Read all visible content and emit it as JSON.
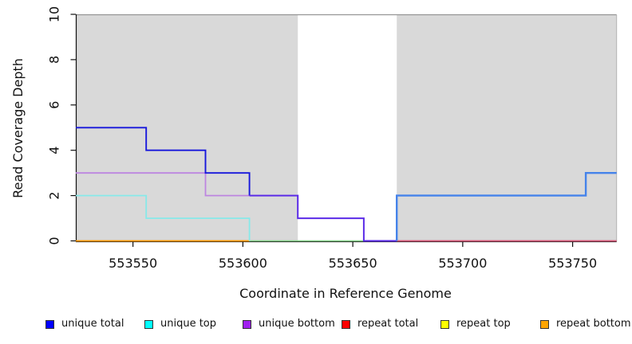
{
  "axes": {
    "x_label": "Coordinate in Reference Genome",
    "y_label": "Read Coverage Depth"
  },
  "chart_data": {
    "type": "line",
    "subtype": "step",
    "title": "",
    "xlabel": "Coordinate in Reference Genome",
    "ylabel": "Read Coverage Depth",
    "xlim": [
      553524,
      553770
    ],
    "ylim": [
      0,
      10
    ],
    "x_ticks": [
      "553550",
      "553600",
      "553650",
      "553700",
      "553750"
    ],
    "y_ticks": [
      "0",
      "2",
      "4",
      "6",
      "8",
      "10"
    ],
    "grid": "off",
    "legend_position": "bottom",
    "shaded_color": "#D9D9D9",
    "shaded_regions": [
      {
        "from": 553524,
        "to": 553625
      },
      {
        "from": 553670,
        "to": 553770
      }
    ],
    "series": [
      {
        "name": "unique total",
        "color": "#0000FF",
        "steps": [
          [
            553524,
            5
          ],
          [
            553556,
            4
          ],
          [
            553583,
            3
          ],
          [
            553603,
            2
          ],
          [
            553625,
            1
          ],
          [
            553655,
            0
          ],
          [
            553670,
            2
          ],
          [
            553756,
            3
          ]
        ],
        "end": 553770
      },
      {
        "name": "unique top",
        "color": "#00FFFF",
        "steps": [
          [
            553524,
            2
          ],
          [
            553556,
            1
          ],
          [
            553603,
            0
          ]
        ],
        "end": 553770
      },
      {
        "name": "unique bottom",
        "color": "#A020F0",
        "steps": [
          [
            553524,
            3
          ],
          [
            553583,
            2
          ],
          [
            553625,
            1
          ],
          [
            553655,
            0
          ]
        ],
        "end": 553770
      },
      {
        "name": "repeat total",
        "color": "#FF0000",
        "steps": [
          [
            553524,
            0
          ]
        ],
        "end": 553770
      },
      {
        "name": "repeat top",
        "color": "#FFFF00",
        "steps": [
          [
            553524,
            0
          ]
        ],
        "end": 553770
      },
      {
        "name": "repeat bottom",
        "color": "#FFA500",
        "steps": [
          [
            553524,
            0
          ]
        ],
        "end": 553770
      }
    ],
    "rendered_layers": [
      {
        "name": "repeat-bottom-zero-line",
        "color": "#FF9900",
        "width": 1.8,
        "points": [
          [
            553524,
            0
          ],
          [
            553603,
            0
          ]
        ]
      },
      {
        "name": "unique-top-repeat-overlap-zero-line",
        "color": "#85D489",
        "width": 1.6,
        "points": [
          [
            553603,
            0
          ],
          [
            553655,
            0
          ]
        ]
      },
      {
        "name": "repeat-total-zero-line",
        "color": "#D95677",
        "width": 1.7,
        "points": [
          [
            553670,
            0
          ],
          [
            553770,
            0
          ]
        ]
      },
      {
        "name": "unique-top-line",
        "color": "#87E9E9",
        "width": 1.8,
        "points": [
          [
            553524,
            2
          ],
          [
            553556,
            2
          ],
          [
            553556,
            1
          ],
          [
            553603,
            1
          ],
          [
            553603,
            0
          ]
        ]
      },
      {
        "name": "unique-bottom-line",
        "color": "#BD85E0",
        "width": 1.8,
        "points": [
          [
            553524,
            3
          ],
          [
            553583,
            3
          ],
          [
            553583,
            2
          ],
          [
            553603,
            2
          ]
        ]
      },
      {
        "name": "unique-total-line-left",
        "color": "#1717DC",
        "width": 1.9,
        "points": [
          [
            553524,
            5
          ],
          [
            553556,
            5
          ],
          [
            553556,
            4
          ],
          [
            553583,
            4
          ],
          [
            553583,
            3
          ],
          [
            553603,
            3
          ],
          [
            553603,
            2
          ]
        ]
      },
      {
        "name": "unique-total-bottom-overlap-line",
        "color": "#5B2BE8",
        "width": 2.0,
        "points": [
          [
            553603,
            2
          ],
          [
            553625,
            2
          ],
          [
            553625,
            1
          ],
          [
            553655,
            1
          ],
          [
            553655,
            0
          ],
          [
            553670,
            0
          ]
        ]
      },
      {
        "name": "unique-total-line-right",
        "color": "#4583EA",
        "width": 2.4,
        "points": [
          [
            553670,
            0
          ],
          [
            553670,
            2
          ],
          [
            553756,
            2
          ],
          [
            553756,
            3
          ],
          [
            553770,
            3
          ]
        ]
      }
    ]
  },
  "legend": {
    "items": [
      {
        "label": "unique total",
        "color": "#0000FF"
      },
      {
        "label": "unique top",
        "color": "#00FFFF"
      },
      {
        "label": "unique bottom",
        "color": "#A020F0"
      },
      {
        "label": "repeat total",
        "color": "#FF0000"
      },
      {
        "label": "repeat top",
        "color": "#FFFF00"
      },
      {
        "label": "repeat bottom",
        "color": "#FFA500"
      }
    ]
  }
}
